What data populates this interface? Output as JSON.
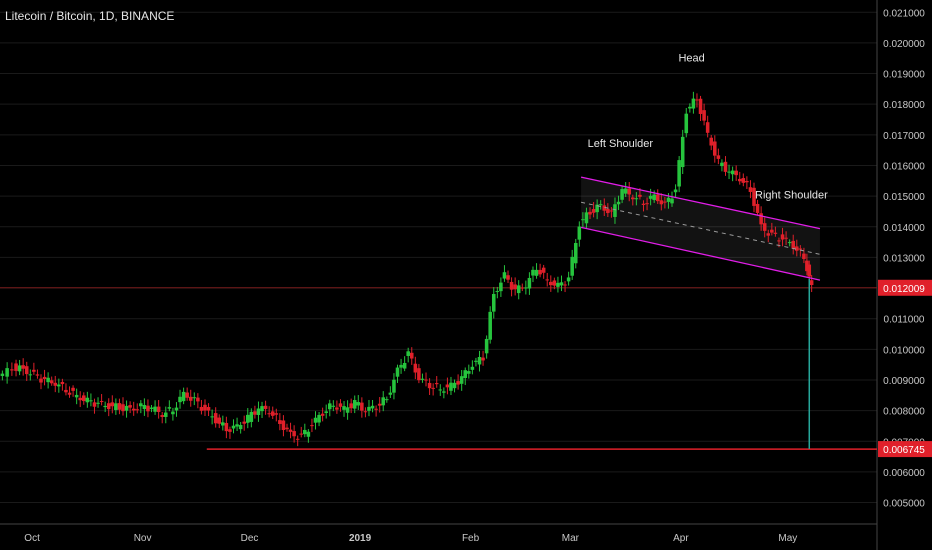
{
  "title": "Litecoin / Bitcoin, 1D, BINANCE",
  "colors": {
    "background": "#000000",
    "up": "#26c43d",
    "down": "#e0202a",
    "axis_text": "#c8c8c8",
    "grid": "#1a1a1a",
    "channel": "#e11de8",
    "support": "#e0202a",
    "price_badge": "#e0202a",
    "annotation": "#e6e6e6",
    "wick_line": "#26a69a"
  },
  "chart_data": {
    "type": "candlestick",
    "title": "Litecoin / Bitcoin, 1D, BINANCE",
    "y_range": [
      0.0043,
      0.0214
    ],
    "y_ticks": [
      "0.005000",
      "0.006000",
      "0.007000",
      "0.008000",
      "0.009000",
      "0.010000",
      "0.011000",
      "0.012000",
      "0.013000",
      "0.014000",
      "0.015000",
      "0.016000",
      "0.017000",
      "0.018000",
      "0.019000",
      "0.020000",
      "0.021000"
    ],
    "x_ticks": [
      {
        "label": "Oct",
        "date": "2018-10-01"
      },
      {
        "label": "Nov",
        "date": "2018-11-01"
      },
      {
        "label": "Dec",
        "date": "2018-12-01"
      },
      {
        "label": "2019",
        "date": "2019-01-01"
      },
      {
        "label": "Feb",
        "date": "2019-02-01"
      },
      {
        "label": "Mar",
        "date": "2019-03-01"
      },
      {
        "label": "Apr",
        "date": "2019-04-01"
      },
      {
        "label": "May",
        "date": "2019-05-01"
      }
    ],
    "x_range": [
      "2018-09-22",
      "2019-05-26"
    ],
    "price_markers": [
      {
        "label": "0.012009",
        "value": 0.012009
      },
      {
        "label": "0.006745",
        "value": 0.006745
      }
    ],
    "price_line": 0.012009,
    "support_line": {
      "value": 0.006745,
      "from": "2018-11-19"
    },
    "annotations": [
      {
        "text": "Head",
        "date": "2019-04-04",
        "value": 0.0194
      },
      {
        "text": "Left Shoulder",
        "date": "2019-03-15",
        "value": 0.0166
      },
      {
        "text": "Right Shoulder",
        "date": "2019-05-02",
        "value": 0.01492
      }
    ],
    "channel": {
      "upper": [
        [
          "2019-03-04",
          0.01562
        ],
        [
          "2019-05-10",
          0.01394
        ]
      ],
      "lower": [
        [
          "2019-03-04",
          0.01398
        ],
        [
          "2019-05-10",
          0.01226
        ]
      ],
      "mid": [
        [
          "2019-03-04",
          0.0148
        ],
        [
          "2019-05-10",
          0.0131
        ]
      ]
    },
    "spike": {
      "date": "2019-05-07",
      "low": 0.00675,
      "value": 0.0123
    },
    "series": [
      {
        "date": "2018-09-22",
        "c": 0.00905
      },
      {
        "date": "2018-09-26",
        "c": 0.00942
      },
      {
        "date": "2018-09-29",
        "c": 0.00935
      },
      {
        "date": "2018-10-02",
        "c": 0.00915
      },
      {
        "date": "2018-10-05",
        "c": 0.00898
      },
      {
        "date": "2018-10-08",
        "c": 0.0089
      },
      {
        "date": "2018-10-11",
        "c": 0.0087
      },
      {
        "date": "2018-10-14",
        "c": 0.00848
      },
      {
        "date": "2018-10-17",
        "c": 0.0083
      },
      {
        "date": "2018-10-20",
        "c": 0.00822
      },
      {
        "date": "2018-10-23",
        "c": 0.00815
      },
      {
        "date": "2018-10-26",
        "c": 0.00812
      },
      {
        "date": "2018-10-29",
        "c": 0.00805
      },
      {
        "date": "2018-11-01",
        "c": 0.00812
      },
      {
        "date": "2018-11-04",
        "c": 0.00808
      },
      {
        "date": "2018-11-07",
        "c": 0.0079
      },
      {
        "date": "2018-11-10",
        "c": 0.00805
      },
      {
        "date": "2018-11-13",
        "c": 0.00855
      },
      {
        "date": "2018-11-16",
        "c": 0.00832
      },
      {
        "date": "2018-11-19",
        "c": 0.008
      },
      {
        "date": "2018-11-22",
        "c": 0.0077
      },
      {
        "date": "2018-11-25",
        "c": 0.0074
      },
      {
        "date": "2018-11-28",
        "c": 0.00748
      },
      {
        "date": "2018-12-01",
        "c": 0.00775
      },
      {
        "date": "2018-12-04",
        "c": 0.00808
      },
      {
        "date": "2018-12-07",
        "c": 0.008
      },
      {
        "date": "2018-12-10",
        "c": 0.00762
      },
      {
        "date": "2018-12-13",
        "c": 0.00722
      },
      {
        "date": "2018-12-16",
        "c": 0.00712
      },
      {
        "date": "2018-12-19",
        "c": 0.00755
      },
      {
        "date": "2018-12-22",
        "c": 0.00795
      },
      {
        "date": "2018-12-25",
        "c": 0.0082
      },
      {
        "date": "2018-12-28",
        "c": 0.00805
      },
      {
        "date": "2018-12-31",
        "c": 0.00825
      },
      {
        "date": "2019-01-03",
        "c": 0.008
      },
      {
        "date": "2019-01-06",
        "c": 0.00815
      },
      {
        "date": "2019-01-09",
        "c": 0.0084
      },
      {
        "date": "2019-01-12",
        "c": 0.0093
      },
      {
        "date": "2019-01-15",
        "c": 0.00985
      },
      {
        "date": "2019-01-18",
        "c": 0.00905
      },
      {
        "date": "2019-01-21",
        "c": 0.00885
      },
      {
        "date": "2019-01-24",
        "c": 0.0087
      },
      {
        "date": "2019-01-27",
        "c": 0.0088
      },
      {
        "date": "2019-01-30",
        "c": 0.00905
      },
      {
        "date": "2019-02-02",
        "c": 0.0095
      },
      {
        "date": "2019-02-05",
        "c": 0.00975
      },
      {
        "date": "2019-02-08",
        "c": 0.0118
      },
      {
        "date": "2019-02-11",
        "c": 0.0124
      },
      {
        "date": "2019-02-14",
        "c": 0.0119
      },
      {
        "date": "2019-02-17",
        "c": 0.0121
      },
      {
        "date": "2019-02-20",
        "c": 0.0127
      },
      {
        "date": "2019-02-23",
        "c": 0.01225
      },
      {
        "date": "2019-02-26",
        "c": 0.01205
      },
      {
        "date": "2019-03-01",
        "c": 0.0123
      },
      {
        "date": "2019-03-04",
        "c": 0.0141
      },
      {
        "date": "2019-03-07",
        "c": 0.0145
      },
      {
        "date": "2019-03-10",
        "c": 0.0147
      },
      {
        "date": "2019-03-13",
        "c": 0.0144
      },
      {
        "date": "2019-03-16",
        "c": 0.0152
      },
      {
        "date": "2019-03-19",
        "c": 0.015
      },
      {
        "date": "2019-03-22",
        "c": 0.0148
      },
      {
        "date": "2019-03-25",
        "c": 0.015
      },
      {
        "date": "2019-03-28",
        "c": 0.0147
      },
      {
        "date": "2019-03-31",
        "c": 0.0152
      },
      {
        "date": "2019-04-03",
        "c": 0.0178
      },
      {
        "date": "2019-04-06",
        "c": 0.0182
      },
      {
        "date": "2019-04-09",
        "c": 0.017
      },
      {
        "date": "2019-04-12",
        "c": 0.0161
      },
      {
        "date": "2019-04-15",
        "c": 0.0158
      },
      {
        "date": "2019-04-18",
        "c": 0.0156
      },
      {
        "date": "2019-04-21",
        "c": 0.0152
      },
      {
        "date": "2019-04-24",
        "c": 0.014
      },
      {
        "date": "2019-04-27",
        "c": 0.0137
      },
      {
        "date": "2019-04-30",
        "c": 0.0136
      },
      {
        "date": "2019-05-03",
        "c": 0.0134
      },
      {
        "date": "2019-05-06",
        "c": 0.013
      },
      {
        "date": "2019-05-08",
        "c": 0.01201
      }
    ]
  }
}
